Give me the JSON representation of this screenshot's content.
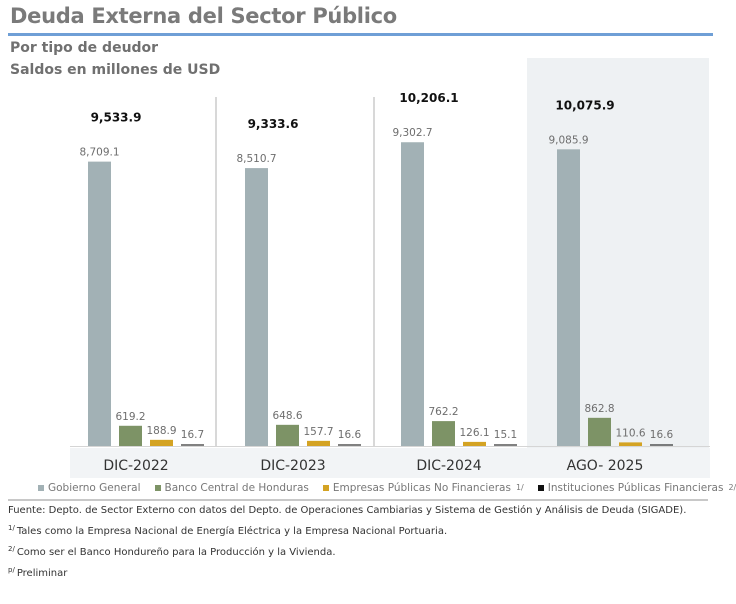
{
  "header": {
    "title": "Deuda Externa del Sector Público",
    "subtitle_1": "Por tipo de deudor",
    "subtitle_2": "Saldos en millones de USD"
  },
  "chart_data": {
    "type": "bar",
    "title": "Deuda Externa del Sector Público",
    "subtitle": "Por tipo de deudor — Saldos en millones de USD",
    "categories": [
      "DIC-2022",
      "DIC-2023",
      "DIC-2024",
      "AGO- 2025"
    ],
    "totals": [
      "9,533.9",
      "9,333.6",
      "10,206.1",
      "10,075.9"
    ],
    "series": [
      {
        "name": "Gobierno General",
        "color": "#a2b1b5",
        "values": [
          8709.1,
          8510.7,
          9302.7,
          9085.9
        ],
        "labels": [
          "8,709.1",
          "8,510.7",
          "9,302.7",
          "9,085.9"
        ]
      },
      {
        "name": "Banco Central de Honduras",
        "color": "#7d9366",
        "values": [
          619.2,
          648.6,
          762.2,
          862.8
        ],
        "labels": [
          "619.2",
          "648.6",
          "762.2",
          "862.8"
        ]
      },
      {
        "name": "Empresas Públicas No Financieras",
        "footnote": "1/",
        "color": "#d4a323",
        "values": [
          188.9,
          157.7,
          126.1,
          110.6
        ],
        "labels": [
          "188.9",
          "157.7",
          "126.1",
          "110.6"
        ]
      },
      {
        "name": "Instituciones Públicas Financieras",
        "footnote": "2/",
        "color": "#1a1a1a",
        "values": [
          16.7,
          16.6,
          15.1,
          16.6
        ],
        "labels": [
          "16.7",
          "16.6",
          "15.1",
          "16.6"
        ]
      }
    ],
    "highlighted_category": "AGO- 2025",
    "xlabel": "",
    "ylabel": "",
    "ylim": [
      0,
      9800
    ],
    "grid": false,
    "legend_position": "bottom"
  },
  "legend": [
    {
      "label": "Gobierno General",
      "sup": "",
      "color": "#a2b1b5"
    },
    {
      "label": "Banco Central de Honduras",
      "sup": "",
      "color": "#7d9366"
    },
    {
      "label": "Empresas Públicas No Financieras",
      "sup": "1/",
      "color": "#d4a323"
    },
    {
      "label": "Instituciones Públicas Financieras",
      "sup": "2/",
      "color": "#111111"
    }
  ],
  "notes": {
    "source": "Fuente: Depto. de Sector Externo con datos del Depto. de Operaciones Cambiarias y Sistema de Gestión y Análisis de Deuda (SIGADE).",
    "note_1_mark": "1/",
    "note_1": "Tales como la Empresa Nacional de Energía Eléctrica y la Empresa Nacional Portuaria.",
    "note_2_mark": "2/",
    "note_2": "Como ser el Banco Hondureño para la Producción y la Vivienda.",
    "note_p_mark": "p/",
    "note_p": "Preliminar"
  }
}
